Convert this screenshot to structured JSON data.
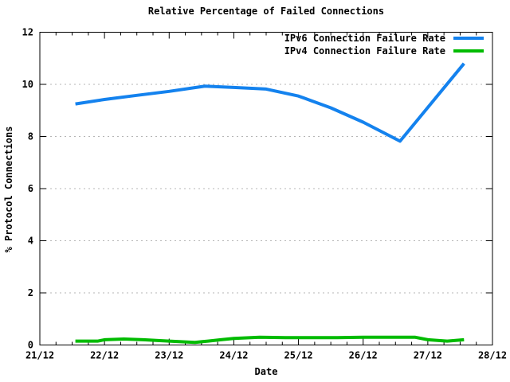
{
  "chart_data": {
    "type": "line",
    "title": "Relative Percentage of Failed Connections",
    "xlabel": "Date",
    "ylabel": "% Protocol Connections",
    "xlim": [
      21,
      28
    ],
    "ylim": [
      0,
      12
    ],
    "x_minor_interval": 0.25,
    "grid": "horizontal dashed gridlines at major y ticks",
    "legend_position": "top-right inside plot",
    "frame_color": "#000000",
    "grid_color": "#b5b5b5",
    "xticks": [
      {
        "value": 21,
        "label": "21/12"
      },
      {
        "value": 22,
        "label": "22/12"
      },
      {
        "value": 23,
        "label": "23/12"
      },
      {
        "value": 24,
        "label": "24/12"
      },
      {
        "value": 25,
        "label": "25/12"
      },
      {
        "value": 26,
        "label": "26/12"
      },
      {
        "value": 27,
        "label": "27/12"
      },
      {
        "value": 28,
        "label": "28/12"
      }
    ],
    "yticks": [
      {
        "value": 0,
        "label": "0"
      },
      {
        "value": 2,
        "label": "2"
      },
      {
        "value": 4,
        "label": "4"
      },
      {
        "value": 6,
        "label": "6"
      },
      {
        "value": 8,
        "label": "8"
      },
      {
        "value": 10,
        "label": "10"
      },
      {
        "value": 12,
        "label": "12"
      }
    ],
    "series": [
      {
        "name": "IPv6 Connection Failure Rate",
        "color": "#1482ee",
        "x": [
          21.55,
          22.0,
          22.5,
          23.0,
          23.55,
          24.0,
          24.5,
          25.0,
          25.5,
          26.0,
          26.57,
          27.56
        ],
        "y": [
          9.25,
          9.42,
          9.58,
          9.73,
          9.93,
          9.88,
          9.82,
          9.55,
          9.1,
          8.55,
          7.82,
          10.8
        ]
      },
      {
        "name": "IPv4 Connection Failure Rate",
        "color": "#00bb00",
        "x": [
          21.55,
          21.9,
          22.0,
          22.3,
          22.6,
          23.0,
          23.4,
          23.6,
          23.8,
          24.0,
          24.4,
          24.8,
          25.2,
          25.6,
          26.0,
          26.4,
          26.8,
          27.0,
          27.3,
          27.56
        ],
        "y": [
          0.15,
          0.15,
          0.2,
          0.23,
          0.2,
          0.15,
          0.1,
          0.15,
          0.2,
          0.25,
          0.3,
          0.28,
          0.28,
          0.28,
          0.3,
          0.3,
          0.3,
          0.2,
          0.15,
          0.2
        ]
      }
    ]
  }
}
